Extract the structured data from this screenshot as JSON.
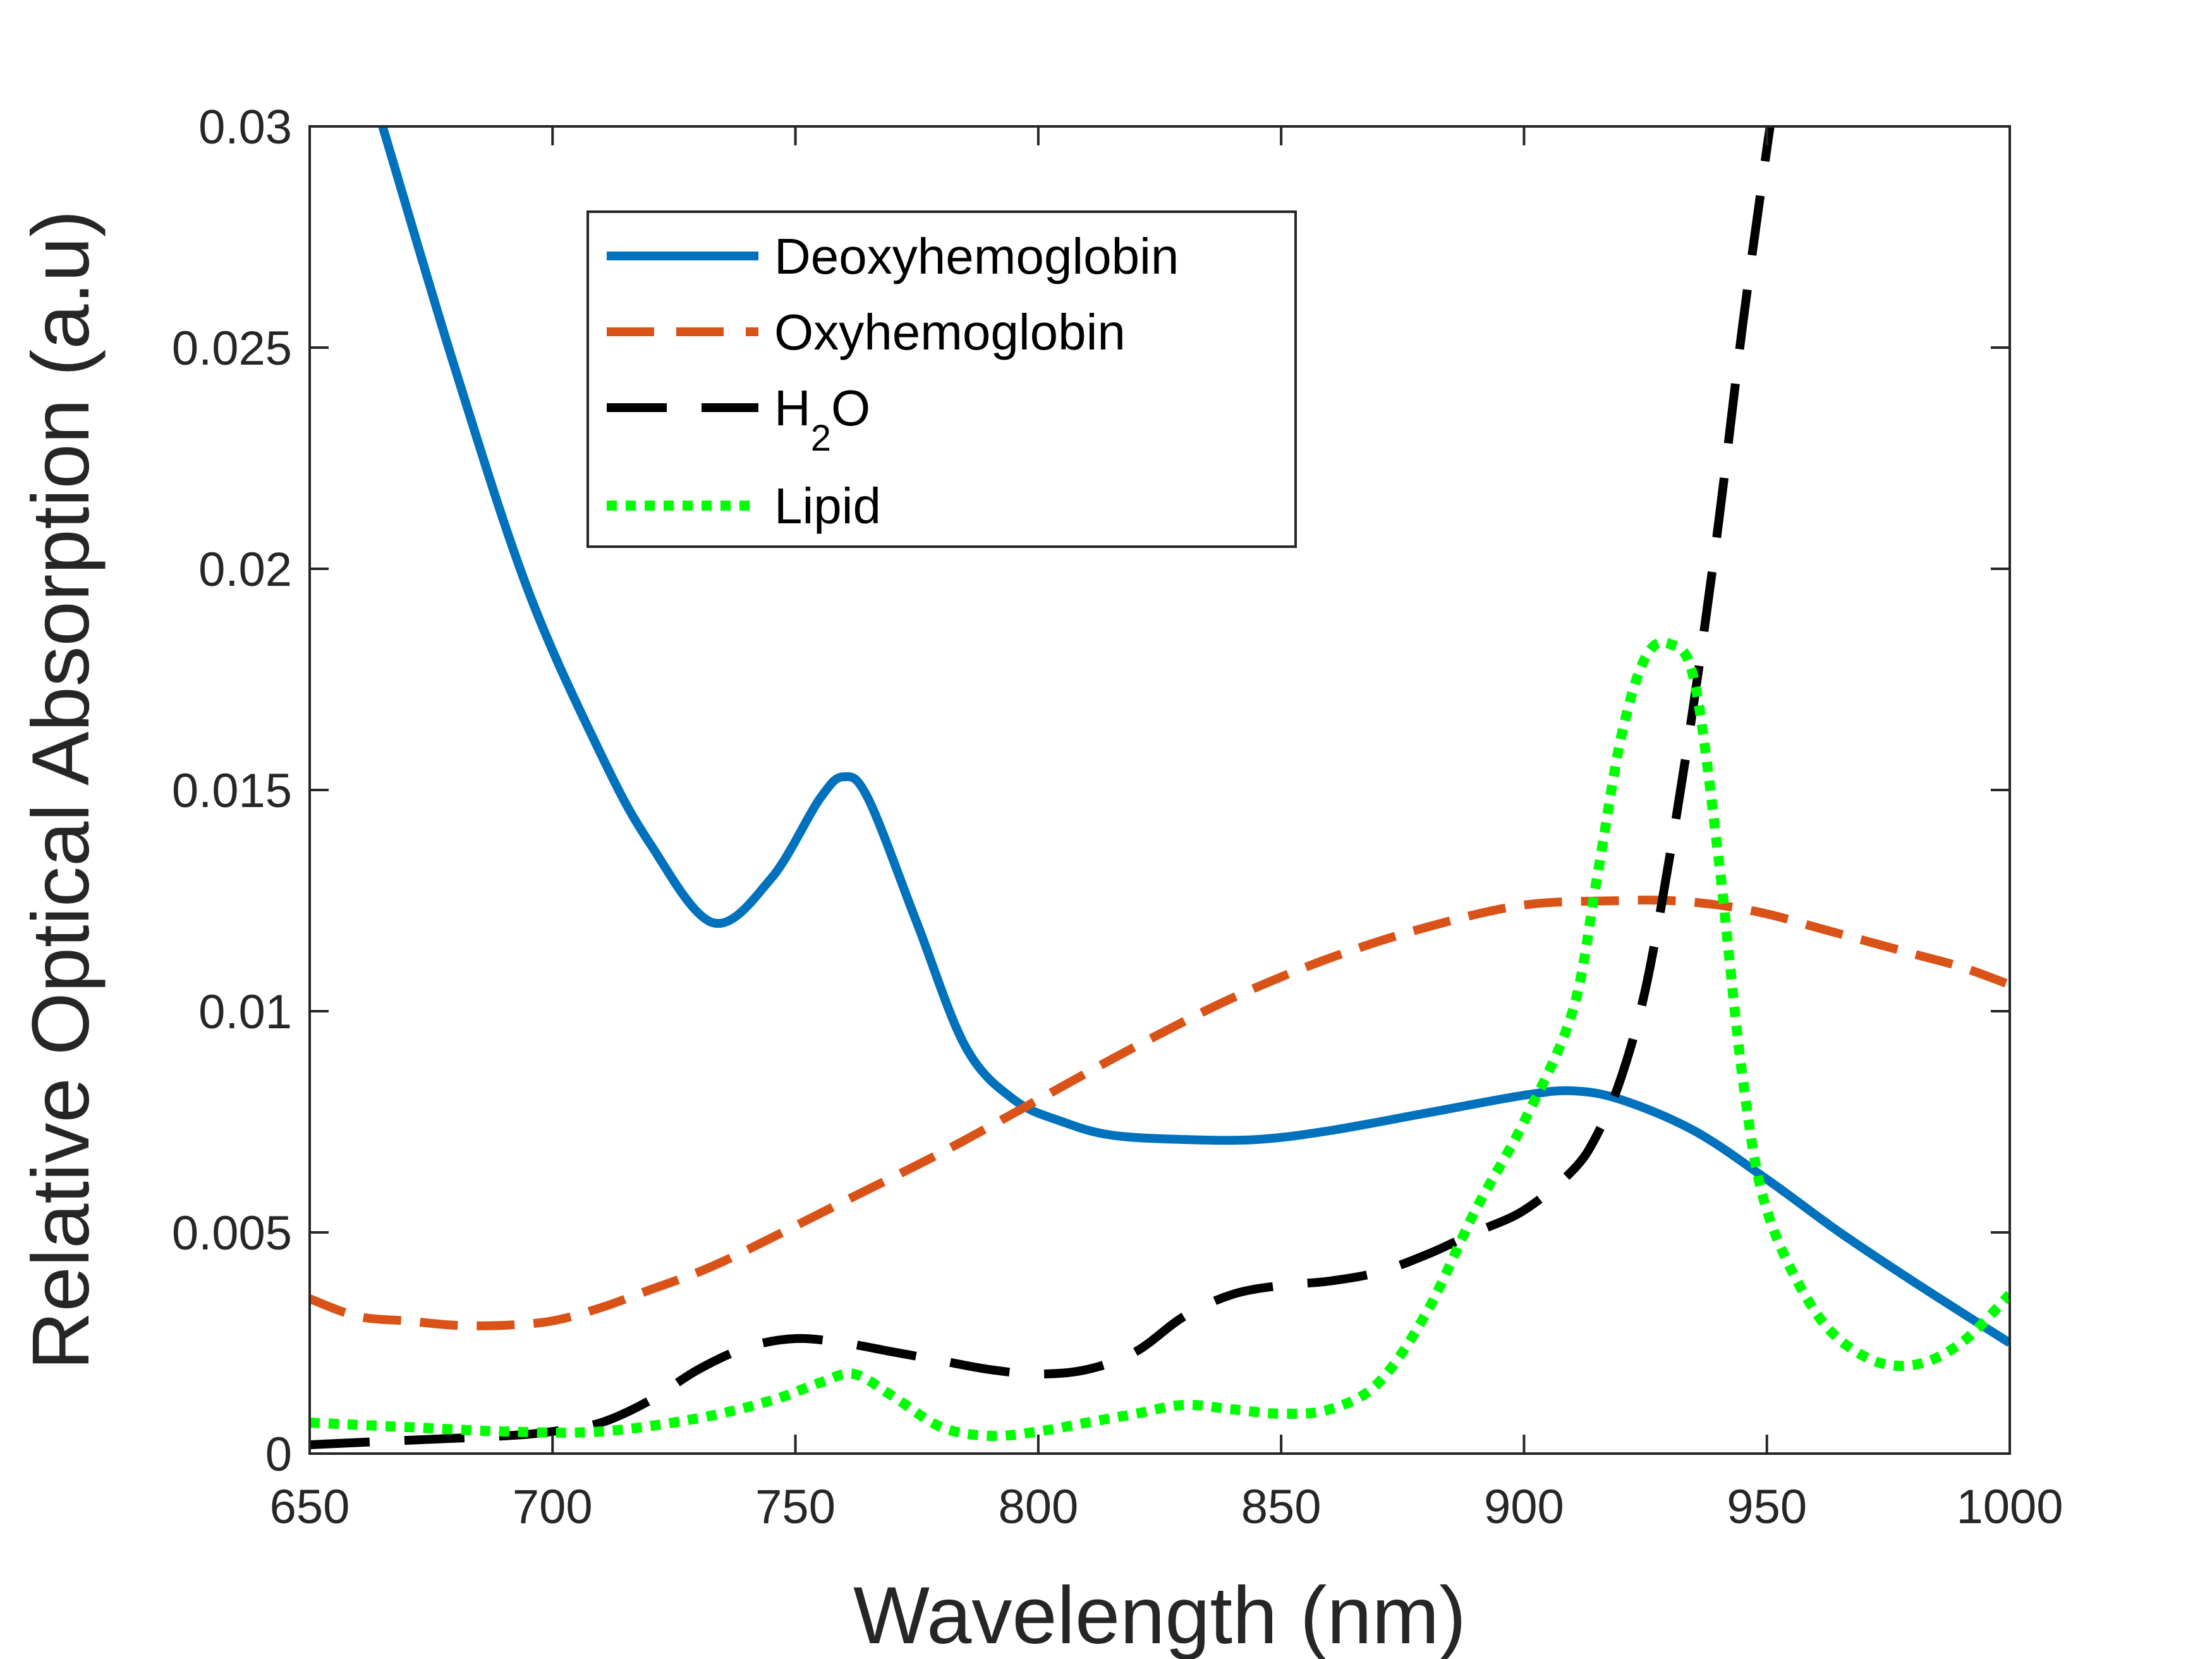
{
  "chart_data": {
    "type": "line",
    "title": "",
    "xlabel": "Wavelength (nm)",
    "ylabel": "Relative Optical Absorption (a.u)",
    "xlim": [
      650,
      1000
    ],
    "ylim": [
      0,
      0.03
    ],
    "x_ticks": [
      650,
      700,
      750,
      800,
      850,
      900,
      950,
      1000
    ],
    "x_tick_labels": [
      "650",
      "700",
      "750",
      "800",
      "850",
      "900",
      "950",
      "1000"
    ],
    "y_ticks": [
      0,
      0.005,
      0.01,
      0.015,
      0.02,
      0.025,
      0.03
    ],
    "y_tick_labels": [
      "0",
      "0.005",
      "0.01",
      "0.015",
      "0.02",
      "0.025",
      "0.03"
    ],
    "grid": false,
    "legend_position": "top-center",
    "series": [
      {
        "name": "Deoxyhemoglobin",
        "label_main": "Deoxyhemoglobin",
        "label_sub": "",
        "label_tail": "",
        "color": "#0072BD",
        "style": "solid",
        "x": [
          650,
          665,
          680,
          695,
          710,
          720,
          733,
          745,
          755,
          760,
          765,
          775,
          785,
          795,
          805,
          815,
          830,
          845,
          860,
          880,
          900,
          910,
          920,
          935,
          950,
          965,
          980,
          1000
        ],
        "y": [
          0.0355,
          0.03,
          0.0245,
          0.0195,
          0.0158,
          0.0138,
          0.012,
          0.013,
          0.0148,
          0.0153,
          0.0148,
          0.012,
          0.0092,
          0.008,
          0.0075,
          0.0072,
          0.0071,
          0.0071,
          0.0073,
          0.0077,
          0.0081,
          0.0082,
          0.008,
          0.0073,
          0.0062,
          0.005,
          0.0039,
          0.0025
        ]
      },
      {
        "name": "Oxyhemoglobin",
        "label_main": "Oxyhemoglobin",
        "label_sub": "",
        "label_tail": "",
        "color": "#D95319",
        "style": "dashed",
        "x": [
          650,
          660,
          670,
          680,
          690,
          700,
          710,
          720,
          730,
          740,
          760,
          780,
          800,
          820,
          840,
          860,
          880,
          900,
          920,
          930,
          940,
          950,
          960,
          970,
          980,
          990,
          1000
        ],
        "y": [
          0.0035,
          0.0031,
          0.003,
          0.0029,
          0.0029,
          0.003,
          0.0033,
          0.0037,
          0.0041,
          0.0046,
          0.0057,
          0.0068,
          0.008,
          0.0092,
          0.0103,
          0.0112,
          0.0119,
          0.0124,
          0.0125,
          0.0125,
          0.0124,
          0.0122,
          0.0119,
          0.0116,
          0.0113,
          0.011,
          0.0106
        ]
      },
      {
        "name": "H2O",
        "label_main": "H",
        "label_sub": "2",
        "label_tail": "O",
        "color": "#000000",
        "style": "longdash",
        "x": [
          650,
          670,
          690,
          700,
          710,
          720,
          730,
          740,
          750,
          760,
          770,
          780,
          790,
          800,
          810,
          820,
          830,
          840,
          850,
          860,
          870,
          880,
          890,
          900,
          910,
          915,
          920,
          925,
          930,
          935,
          940,
          945,
          950,
          952
        ],
        "y": [
          0.0002,
          0.0003,
          0.0004,
          0.0005,
          0.0007,
          0.0012,
          0.0019,
          0.0024,
          0.0026,
          0.0025,
          0.0023,
          0.0021,
          0.0019,
          0.0018,
          0.0019,
          0.0023,
          0.0031,
          0.0036,
          0.0038,
          0.0039,
          0.0041,
          0.0045,
          0.005,
          0.0055,
          0.0064,
          0.0072,
          0.0085,
          0.0105,
          0.0135,
          0.017,
          0.021,
          0.0255,
          0.0295,
          0.031
        ]
      },
      {
        "name": "Lipid",
        "label_main": "Lipid",
        "label_sub": "",
        "label_tail": "",
        "color": "#00FF00",
        "style": "dotted",
        "x": [
          650,
          670,
          690,
          710,
          730,
          745,
          755,
          762,
          770,
          780,
          790,
          800,
          810,
          820,
          830,
          840,
          850,
          860,
          870,
          880,
          890,
          900,
          910,
          915,
          920,
          925,
          930,
          935,
          940,
          945,
          950,
          960,
          970,
          980,
          990,
          1000
        ],
        "y": [
          0.0007,
          0.0006,
          0.0005,
          0.0005,
          0.0008,
          0.0012,
          0.0016,
          0.0018,
          0.0013,
          0.0006,
          0.0004,
          0.0005,
          0.0007,
          0.0009,
          0.0011,
          0.001,
          0.0009,
          0.001,
          0.0016,
          0.0032,
          0.0055,
          0.0075,
          0.01,
          0.013,
          0.0162,
          0.018,
          0.0183,
          0.0175,
          0.0135,
          0.0085,
          0.0055,
          0.0032,
          0.0022,
          0.002,
          0.0025,
          0.0036
        ]
      }
    ]
  }
}
